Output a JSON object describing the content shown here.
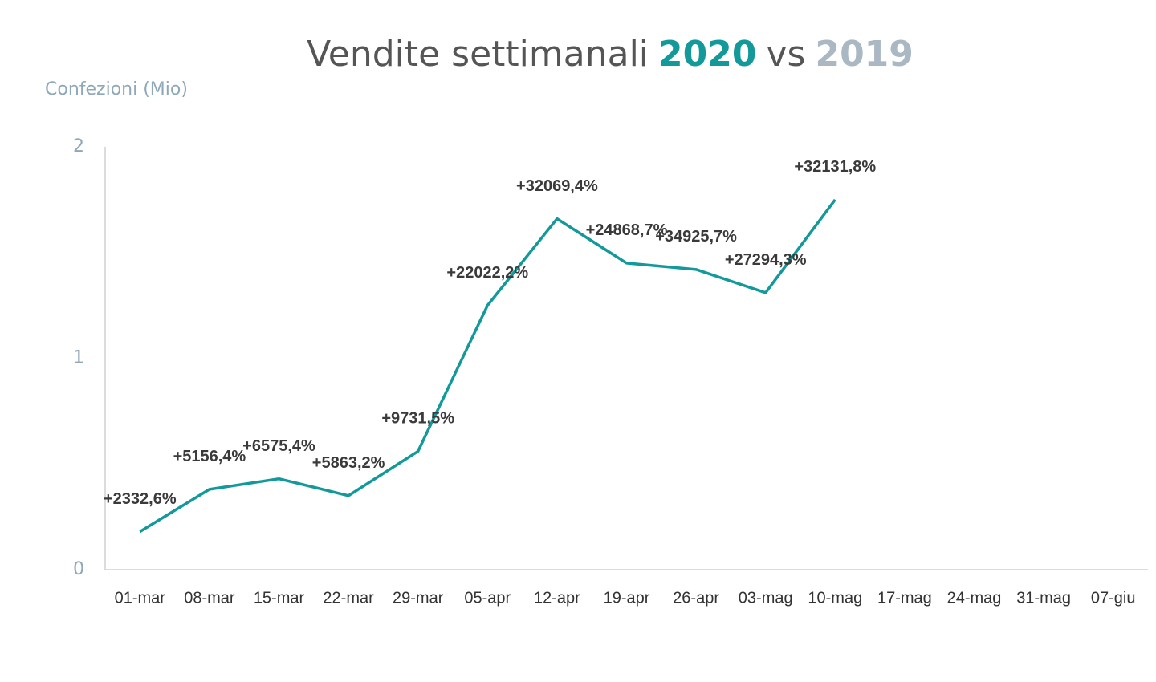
{
  "chart_data": {
    "type": "line",
    "title": [
      {
        "text": "Vendite settimanali",
        "color": "#555555",
        "bold": false
      },
      {
        "text": "2020",
        "color": "#13999a",
        "bold": true
      },
      {
        "text": "vs",
        "color": "#555555",
        "bold": false
      },
      {
        "text": "2019",
        "color": "#a9b8c3",
        "bold": true
      }
    ],
    "y_label": "Confezioni (Mio)",
    "categories": [
      "01-mar",
      "08-mar",
      "15-mar",
      "22-mar",
      "29-mar",
      "05-apr",
      "12-apr",
      "19-apr",
      "26-apr",
      "03-mag",
      "10-mag",
      "17-mag",
      "24-mag",
      "31-mag",
      "07-giu"
    ],
    "series": [
      {
        "name": "2020",
        "color": "#13999a",
        "values": [
          0.18,
          0.38,
          0.43,
          0.35,
          0.56,
          1.25,
          1.66,
          1.45,
          1.42,
          1.31,
          1.75,
          null,
          null,
          null,
          null
        ],
        "value_labels": [
          "+2332,6%",
          "+5156,4%",
          "+6575,4%",
          "+5863,2%",
          "+9731,5%",
          "+22022,2%",
          "+32069,4%",
          "+24868,7%",
          "+34925,7%",
          "+27294,3%",
          "+32131,8%",
          null,
          null,
          null,
          null
        ]
      }
    ],
    "ylim": [
      0,
      2
    ],
    "yticks": [
      0,
      1,
      2
    ],
    "grid": false,
    "legend": false
  }
}
